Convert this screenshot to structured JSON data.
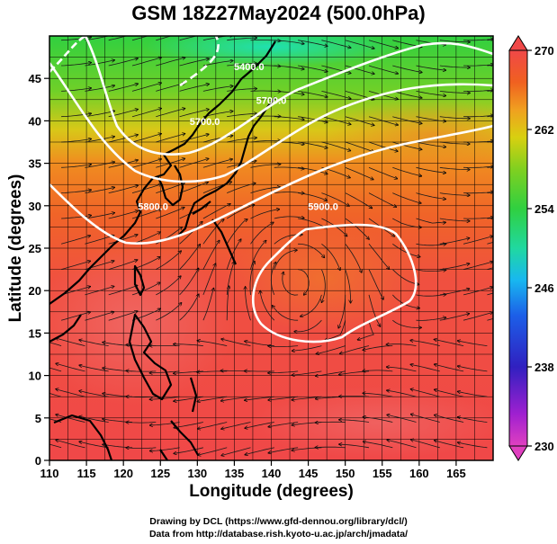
{
  "title": "GSM 18Z27May2024 (500.0hPa)",
  "xlabel": "Longitude (degrees)",
  "ylabel": "Latitude  (degrees)",
  "credit_line1": "Drawing by DCL (https://www.gfd-dennou.org/library/dcl/)",
  "credit_line2": "Data from http://database.rish.kyoto-u.ac.jp/arch/jmadata/",
  "map_extent": {
    "lon_min": 110,
    "lon_max": 170,
    "lat_min": 0,
    "lat_max": 50
  },
  "x_ticks": [
    {
      "value": 110,
      "label": "110"
    },
    {
      "value": 115,
      "label": "115"
    },
    {
      "value": 120,
      "label": "120"
    },
    {
      "value": 125,
      "label": "125"
    },
    {
      "value": 130,
      "label": "130"
    },
    {
      "value": 135,
      "label": "135"
    },
    {
      "value": 140,
      "label": "140"
    },
    {
      "value": 145,
      "label": "145"
    },
    {
      "value": 150,
      "label": "150"
    },
    {
      "value": 155,
      "label": "155"
    },
    {
      "value": 160,
      "label": "160"
    },
    {
      "value": 165,
      "label": "165"
    }
  ],
  "y_ticks": [
    {
      "value": 0,
      "label": "0"
    },
    {
      "value": 5,
      "label": "5"
    },
    {
      "value": 10,
      "label": "10"
    },
    {
      "value": 15,
      "label": "15"
    },
    {
      "value": 20,
      "label": "20"
    },
    {
      "value": 25,
      "label": "25"
    },
    {
      "value": 30,
      "label": "30"
    },
    {
      "value": 35,
      "label": "35"
    },
    {
      "value": 40,
      "label": "40"
    },
    {
      "value": 45,
      "label": "45"
    }
  ],
  "colorbar": {
    "min": 230,
    "max": 270,
    "ticks": [
      {
        "value": 270,
        "label": "270"
      },
      {
        "value": 262,
        "label": "262"
      },
      {
        "value": 254,
        "label": "254"
      },
      {
        "value": 246,
        "label": "246"
      },
      {
        "value": 238,
        "label": "238"
      },
      {
        "value": 230,
        "label": "230"
      }
    ],
    "colors": [
      "#e040c0",
      "#a020d0",
      "#3020c0",
      "#1c5fe8",
      "#18b8f0",
      "#20d8a0",
      "#30d040",
      "#80d020",
      "#d8d010",
      "#f0a020",
      "#f06020",
      "#f04848",
      "#f06868"
    ]
  },
  "contour_labels": [
    {
      "text": "5400.0",
      "lon": 137,
      "lat": 46
    },
    {
      "text": "5700.0",
      "lon": 131,
      "lat": 39.5
    },
    {
      "text": "5700.0",
      "lon": 140,
      "lat": 42
    },
    {
      "text": "5800.0",
      "lon": 124,
      "lat": 29.5
    },
    {
      "text": "5900.0",
      "lon": 147,
      "lat": 29.5
    }
  ]
}
